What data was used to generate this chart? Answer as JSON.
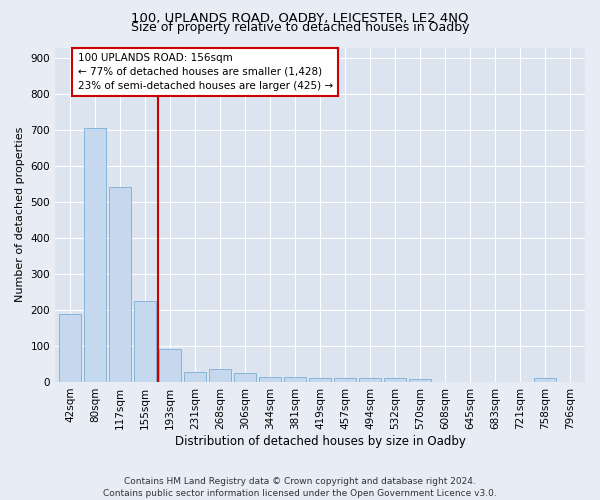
{
  "title": "100, UPLANDS ROAD, OADBY, LEICESTER, LE2 4NQ",
  "subtitle": "Size of property relative to detached houses in Oadby",
  "xlabel": "Distribution of detached houses by size in Oadby",
  "ylabel": "Number of detached properties",
  "categories": [
    "42sqm",
    "80sqm",
    "117sqm",
    "155sqm",
    "193sqm",
    "231sqm",
    "268sqm",
    "306sqm",
    "344sqm",
    "381sqm",
    "419sqm",
    "457sqm",
    "494sqm",
    "532sqm",
    "570sqm",
    "608sqm",
    "645sqm",
    "683sqm",
    "721sqm",
    "758sqm",
    "796sqm"
  ],
  "values": [
    190,
    706,
    543,
    225,
    92,
    27,
    37,
    24,
    15,
    13,
    12,
    12,
    10,
    10,
    8,
    0,
    0,
    0,
    0,
    10,
    0
  ],
  "bar_color": "#c5d8ee",
  "bar_edge_color": "#7aafd4",
  "marker_label": "100 UPLANDS ROAD: 156sqm",
  "annotation_line1": "← 77% of detached houses are smaller (1,428)",
  "annotation_line2": "23% of semi-detached houses are larger (425) →",
  "annotation_box_color": "#ffffff",
  "annotation_box_edge": "#cc0000",
  "marker_line_color": "#cc0000",
  "ylim": [
    0,
    930
  ],
  "yticks": [
    0,
    100,
    200,
    300,
    400,
    500,
    600,
    700,
    800,
    900
  ],
  "bg_color": "#e8edf5",
  "plot_bg_color": "#dce4f0",
  "grid_color": "#ffffff",
  "footer": "Contains HM Land Registry data © Crown copyright and database right 2024.\nContains public sector information licensed under the Open Government Licence v3.0.",
  "title_fontsize": 9.5,
  "subtitle_fontsize": 9,
  "xlabel_fontsize": 8.5,
  "ylabel_fontsize": 8,
  "tick_fontsize": 7.5,
  "footer_fontsize": 6.5,
  "annotation_fontsize": 7.5
}
